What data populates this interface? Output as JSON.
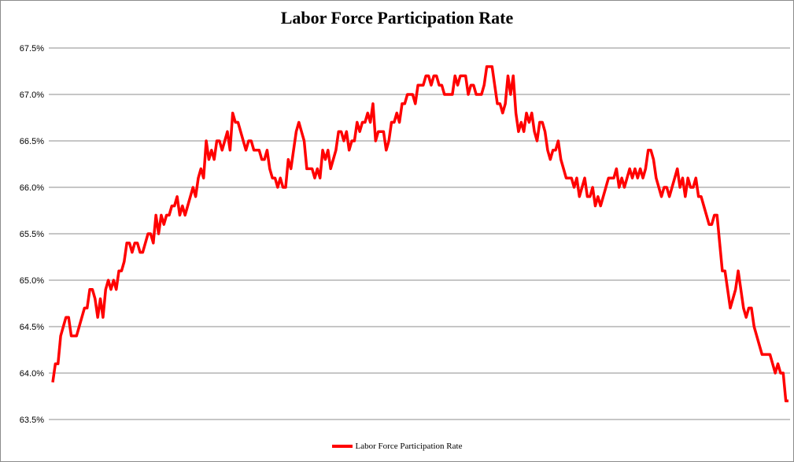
{
  "chart_data": {
    "type": "line",
    "title": "Labor Force Participation Rate",
    "xlabel": "",
    "ylabel": "",
    "ylim": [
      63.5,
      67.5
    ],
    "y_ticks": [
      "63.5%",
      "64.0%",
      "64.5%",
      "65.0%",
      "65.5%",
      "66.0%",
      "66.5%",
      "67.0%",
      "67.5%"
    ],
    "y_tick_values": [
      63.5,
      64.0,
      64.5,
      65.0,
      65.5,
      66.0,
      66.5,
      67.0,
      67.5
    ],
    "grid": true,
    "legend_position": "bottom",
    "color": "#ff0000",
    "series": [
      {
        "name": "Labor Force Participation Rate",
        "values": [
          63.9,
          64.1,
          64.1,
          64.4,
          64.5,
          64.6,
          64.6,
          64.4,
          64.4,
          64.4,
          64.5,
          64.6,
          64.7,
          64.7,
          64.9,
          64.9,
          64.8,
          64.6,
          64.8,
          64.6,
          64.9,
          65.0,
          64.9,
          65.0,
          64.9,
          65.1,
          65.1,
          65.2,
          65.4,
          65.4,
          65.3,
          65.4,
          65.4,
          65.3,
          65.3,
          65.4,
          65.5,
          65.5,
          65.4,
          65.7,
          65.5,
          65.7,
          65.6,
          65.7,
          65.7,
          65.8,
          65.8,
          65.9,
          65.7,
          65.8,
          65.7,
          65.8,
          65.9,
          66.0,
          65.9,
          66.1,
          66.2,
          66.1,
          66.5,
          66.3,
          66.4,
          66.3,
          66.5,
          66.5,
          66.4,
          66.5,
          66.6,
          66.4,
          66.8,
          66.7,
          66.7,
          66.6,
          66.5,
          66.4,
          66.5,
          66.5,
          66.4,
          66.4,
          66.4,
          66.3,
          66.3,
          66.4,
          66.2,
          66.1,
          66.1,
          66.0,
          66.1,
          66.0,
          66.0,
          66.3,
          66.2,
          66.4,
          66.6,
          66.7,
          66.6,
          66.5,
          66.2,
          66.2,
          66.2,
          66.1,
          66.2,
          66.1,
          66.4,
          66.3,
          66.4,
          66.2,
          66.3,
          66.4,
          66.6,
          66.6,
          66.5,
          66.6,
          66.4,
          66.5,
          66.5,
          66.7,
          66.6,
          66.7,
          66.7,
          66.8,
          66.7,
          66.9,
          66.5,
          66.6,
          66.6,
          66.6,
          66.4,
          66.5,
          66.7,
          66.7,
          66.8,
          66.7,
          66.9,
          66.9,
          67.0,
          67.0,
          67.0,
          66.9,
          67.1,
          67.1,
          67.1,
          67.2,
          67.2,
          67.1,
          67.2,
          67.2,
          67.1,
          67.1,
          67.0,
          67.0,
          67.0,
          67.0,
          67.2,
          67.1,
          67.2,
          67.2,
          67.2,
          67.0,
          67.1,
          67.1,
          67.0,
          67.0,
          67.0,
          67.1,
          67.3,
          67.3,
          67.3,
          67.1,
          66.9,
          66.9,
          66.8,
          66.9,
          67.2,
          67.0,
          67.2,
          66.8,
          66.6,
          66.7,
          66.6,
          66.8,
          66.7,
          66.8,
          66.6,
          66.5,
          66.7,
          66.7,
          66.6,
          66.4,
          66.3,
          66.4,
          66.4,
          66.5,
          66.3,
          66.2,
          66.1,
          66.1,
          66.1,
          66.0,
          66.1,
          65.9,
          66.0,
          66.1,
          65.9,
          65.9,
          66.0,
          65.8,
          65.9,
          65.8,
          65.9,
          66.0,
          66.1,
          66.1,
          66.1,
          66.2,
          66.0,
          66.1,
          66.0,
          66.1,
          66.2,
          66.1,
          66.2,
          66.1,
          66.2,
          66.1,
          66.2,
          66.4,
          66.4,
          66.3,
          66.1,
          66.0,
          65.9,
          66.0,
          66.0,
          65.9,
          66.0,
          66.1,
          66.2,
          66.0,
          66.1,
          65.9,
          66.1,
          66.0,
          66.0,
          66.1,
          65.9,
          65.9,
          65.8,
          65.7,
          65.6,
          65.6,
          65.7,
          65.7,
          65.4,
          65.1,
          65.1,
          64.9,
          64.7,
          64.8,
          64.9,
          65.1,
          64.9,
          64.7,
          64.6,
          64.7,
          64.7,
          64.5,
          64.4,
          64.3,
          64.2,
          64.2,
          64.2,
          64.2,
          64.1,
          64.0,
          64.1,
          64.0,
          64.0,
          63.7,
          63.7
        ]
      }
    ]
  }
}
